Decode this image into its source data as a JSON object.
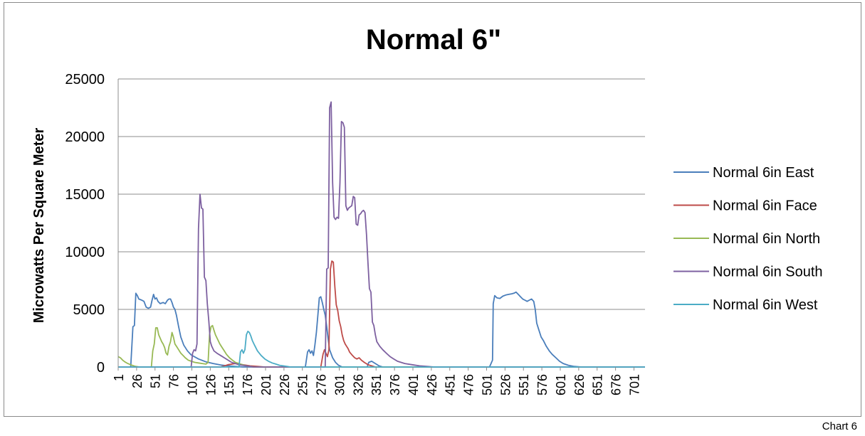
{
  "caption": "Chart 6",
  "chart_data": {
    "type": "line",
    "title": "Normal 6\"",
    "xlabel": "",
    "ylabel": "Microwatts Per Square Meter",
    "xlim": [
      1,
      716
    ],
    "ylim": [
      0,
      25000
    ],
    "y_ticks": [
      0,
      5000,
      10000,
      15000,
      20000,
      25000
    ],
    "x_ticks": [
      1,
      26,
      51,
      76,
      101,
      126,
      151,
      176,
      201,
      226,
      251,
      276,
      301,
      326,
      351,
      376,
      401,
      426,
      451,
      476,
      501,
      526,
      551,
      576,
      601,
      626,
      651,
      676,
      701
    ],
    "grid": "horizontal",
    "legend_position": "right",
    "series": [
      {
        "name": "Normal 6in East",
        "color": "#4a7ebb",
        "points": [
          [
            1,
            0
          ],
          [
            18,
            0
          ],
          [
            21,
            3500
          ],
          [
            23,
            3600
          ],
          [
            25,
            6400
          ],
          [
            27,
            6200
          ],
          [
            29,
            5900
          ],
          [
            33,
            5800
          ],
          [
            36,
            5700
          ],
          [
            39,
            5200
          ],
          [
            42,
            5100
          ],
          [
            45,
            5200
          ],
          [
            47,
            5800
          ],
          [
            49,
            6300
          ],
          [
            51,
            5900
          ],
          [
            53,
            6000
          ],
          [
            55,
            5700
          ],
          [
            58,
            5500
          ],
          [
            62,
            5600
          ],
          [
            65,
            5500
          ],
          [
            68,
            5800
          ],
          [
            70,
            5900
          ],
          [
            72,
            5900
          ],
          [
            74,
            5600
          ],
          [
            76,
            5200
          ],
          [
            78,
            5000
          ],
          [
            80,
            4500
          ],
          [
            83,
            3500
          ],
          [
            86,
            2600
          ],
          [
            90,
            1900
          ],
          [
            95,
            1400
          ],
          [
            100,
            1050
          ],
          [
            110,
            700
          ],
          [
            120,
            450
          ],
          [
            130,
            300
          ],
          [
            140,
            180
          ],
          [
            150,
            100
          ],
          [
            160,
            50
          ],
          [
            170,
            0
          ],
          [
            255,
            0
          ],
          [
            258,
            1300
          ],
          [
            260,
            1500
          ],
          [
            262,
            1200
          ],
          [
            264,
            1400
          ],
          [
            266,
            1000
          ],
          [
            268,
            1900
          ],
          [
            270,
            3000
          ],
          [
            272,
            4500
          ],
          [
            274,
            6000
          ],
          [
            276,
            6100
          ],
          [
            278,
            5600
          ],
          [
            280,
            5000
          ],
          [
            282,
            4500
          ],
          [
            284,
            3500
          ],
          [
            286,
            2400
          ],
          [
            288,
            1500
          ],
          [
            292,
            800
          ],
          [
            296,
            400
          ],
          [
            300,
            150
          ],
          [
            305,
            0
          ],
          [
            339,
            0
          ],
          [
            341,
            400
          ],
          [
            345,
            500
          ],
          [
            350,
            300
          ],
          [
            355,
            100
          ],
          [
            360,
            0
          ],
          [
            505,
            0
          ],
          [
            509,
            600
          ],
          [
            510,
            5500
          ],
          [
            512,
            6200
          ],
          [
            515,
            6000
          ],
          [
            519,
            5950
          ],
          [
            523,
            6150
          ],
          [
            527,
            6250
          ],
          [
            531,
            6300
          ],
          [
            535,
            6350
          ],
          [
            538,
            6400
          ],
          [
            541,
            6500
          ],
          [
            544,
            6300
          ],
          [
            547,
            6100
          ],
          [
            550,
            5900
          ],
          [
            553,
            5800
          ],
          [
            556,
            5700
          ],
          [
            559,
            5800
          ],
          [
            562,
            5900
          ],
          [
            565,
            5700
          ],
          [
            567,
            5000
          ],
          [
            569,
            3800
          ],
          [
            572,
            3200
          ],
          [
            575,
            2600
          ],
          [
            578,
            2300
          ],
          [
            582,
            1800
          ],
          [
            586,
            1400
          ],
          [
            590,
            1100
          ],
          [
            595,
            800
          ],
          [
            600,
            500
          ],
          [
            605,
            300
          ],
          [
            612,
            150
          ],
          [
            620,
            50
          ],
          [
            630,
            0
          ],
          [
            716,
            0
          ]
        ]
      },
      {
        "name": "Normal 6in Face",
        "color": "#be4b48",
        "points": [
          [
            1,
            0
          ],
          [
            140,
            0
          ],
          [
            150,
            200
          ],
          [
            160,
            300
          ],
          [
            170,
            200
          ],
          [
            180,
            100
          ],
          [
            190,
            50
          ],
          [
            200,
            0
          ],
          [
            276,
            0
          ],
          [
            279,
            1100
          ],
          [
            281,
            1500
          ],
          [
            283,
            1200
          ],
          [
            285,
            900
          ],
          [
            287,
            1500
          ],
          [
            289,
            8500
          ],
          [
            291,
            9200
          ],
          [
            293,
            9100
          ],
          [
            295,
            7000
          ],
          [
            297,
            5400
          ],
          [
            299,
            4900
          ],
          [
            301,
            4000
          ],
          [
            303,
            3500
          ],
          [
            305,
            2800
          ],
          [
            307,
            2300
          ],
          [
            309,
            2000
          ],
          [
            311,
            1800
          ],
          [
            313,
            1600
          ],
          [
            315,
            1300
          ],
          [
            319,
            1000
          ],
          [
            322,
            800
          ],
          [
            325,
            700
          ],
          [
            328,
            800
          ],
          [
            331,
            600
          ],
          [
            335,
            400
          ],
          [
            340,
            200
          ],
          [
            345,
            100
          ],
          [
            350,
            0
          ],
          [
            716,
            0
          ]
        ]
      },
      {
        "name": "Normal 6in North",
        "color": "#98b954",
        "points": [
          [
            1,
            900
          ],
          [
            4,
            800
          ],
          [
            7,
            600
          ],
          [
            10,
            450
          ],
          [
            14,
            300
          ],
          [
            18,
            200
          ],
          [
            22,
            100
          ],
          [
            25,
            50
          ],
          [
            30,
            0
          ],
          [
            46,
            0
          ],
          [
            48,
            1400
          ],
          [
            50,
            2000
          ],
          [
            52,
            3400
          ],
          [
            54,
            3400
          ],
          [
            56,
            2800
          ],
          [
            58,
            2500
          ],
          [
            60,
            2200
          ],
          [
            62,
            2000
          ],
          [
            64,
            1700
          ],
          [
            66,
            1200
          ],
          [
            68,
            1050
          ],
          [
            70,
            1800
          ],
          [
            72,
            2200
          ],
          [
            74,
            3000
          ],
          [
            76,
            2600
          ],
          [
            78,
            2000
          ],
          [
            80,
            1800
          ],
          [
            83,
            1500
          ],
          [
            86,
            1200
          ],
          [
            89,
            1000
          ],
          [
            92,
            800
          ],
          [
            96,
            600
          ],
          [
            100,
            500
          ],
          [
            105,
            400
          ],
          [
            110,
            350
          ],
          [
            115,
            300
          ],
          [
            120,
            250
          ],
          [
            123,
            400
          ],
          [
            125,
            2800
          ],
          [
            127,
            3500
          ],
          [
            129,
            3600
          ],
          [
            131,
            3200
          ],
          [
            133,
            2800
          ],
          [
            136,
            2400
          ],
          [
            139,
            2000
          ],
          [
            142,
            1700
          ],
          [
            145,
            1400
          ],
          [
            148,
            1100
          ],
          [
            152,
            800
          ],
          [
            156,
            600
          ],
          [
            160,
            400
          ],
          [
            165,
            300
          ],
          [
            170,
            200
          ],
          [
            175,
            100
          ],
          [
            180,
            50
          ],
          [
            185,
            0
          ],
          [
            716,
            0
          ]
        ]
      },
      {
        "name": "Normal 6in South",
        "color": "#7d60a0",
        "points": [
          [
            1,
            0
          ],
          [
            100,
            0
          ],
          [
            102,
            1200
          ],
          [
            104,
            1500
          ],
          [
            106,
            1400
          ],
          [
            108,
            2000
          ],
          [
            110,
            12000
          ],
          [
            112,
            15000
          ],
          [
            114,
            13800
          ],
          [
            116,
            13700
          ],
          [
            118,
            7800
          ],
          [
            120,
            7500
          ],
          [
            122,
            5500
          ],
          [
            124,
            4000
          ],
          [
            126,
            2200
          ],
          [
            128,
            1800
          ],
          [
            131,
            1400
          ],
          [
            135,
            1200
          ],
          [
            140,
            1000
          ],
          [
            145,
            800
          ],
          [
            150,
            600
          ],
          [
            155,
            400
          ],
          [
            160,
            300
          ],
          [
            165,
            200
          ],
          [
            170,
            150
          ],
          [
            175,
            100
          ],
          [
            180,
            50
          ],
          [
            185,
            0
          ],
          [
            282,
            0
          ],
          [
            284,
            8500
          ],
          [
            286,
            8600
          ],
          [
            288,
            22500
          ],
          [
            290,
            23000
          ],
          [
            292,
            16000
          ],
          [
            294,
            13000
          ],
          [
            296,
            12800
          ],
          [
            298,
            13000
          ],
          [
            300,
            12900
          ],
          [
            302,
            16000
          ],
          [
            304,
            21300
          ],
          [
            306,
            21200
          ],
          [
            308,
            20800
          ],
          [
            310,
            14000
          ],
          [
            312,
            13600
          ],
          [
            314,
            13800
          ],
          [
            316,
            13900
          ],
          [
            318,
            14000
          ],
          [
            320,
            14800
          ],
          [
            322,
            14700
          ],
          [
            324,
            12400
          ],
          [
            326,
            12300
          ],
          [
            328,
            13200
          ],
          [
            330,
            13300
          ],
          [
            332,
            13500
          ],
          [
            334,
            13600
          ],
          [
            336,
            13400
          ],
          [
            338,
            11500
          ],
          [
            340,
            9000
          ],
          [
            342,
            6800
          ],
          [
            344,
            6500
          ],
          [
            346,
            3900
          ],
          [
            348,
            3600
          ],
          [
            350,
            2800
          ],
          [
            352,
            2200
          ],
          [
            356,
            1800
          ],
          [
            360,
            1500
          ],
          [
            365,
            1200
          ],
          [
            370,
            900
          ],
          [
            375,
            700
          ],
          [
            380,
            500
          ],
          [
            385,
            400
          ],
          [
            390,
            300
          ],
          [
            400,
            200
          ],
          [
            410,
            100
          ],
          [
            420,
            50
          ],
          [
            430,
            0
          ],
          [
            716,
            0
          ]
        ]
      },
      {
        "name": "Normal 6in West",
        "color": "#4bacc6",
        "points": [
          [
            1,
            0
          ],
          [
            165,
            0
          ],
          [
            167,
            1300
          ],
          [
            169,
            1500
          ],
          [
            171,
            1200
          ],
          [
            173,
            1500
          ],
          [
            175,
            2800
          ],
          [
            177,
            3100
          ],
          [
            179,
            3000
          ],
          [
            181,
            2700
          ],
          [
            183,
            2300
          ],
          [
            186,
            1900
          ],
          [
            190,
            1400
          ],
          [
            195,
            1000
          ],
          [
            200,
            700
          ],
          [
            205,
            500
          ],
          [
            210,
            350
          ],
          [
            215,
            250
          ],
          [
            220,
            150
          ],
          [
            225,
            100
          ],
          [
            230,
            50
          ],
          [
            235,
            0
          ],
          [
            716,
            0
          ]
        ]
      }
    ]
  }
}
